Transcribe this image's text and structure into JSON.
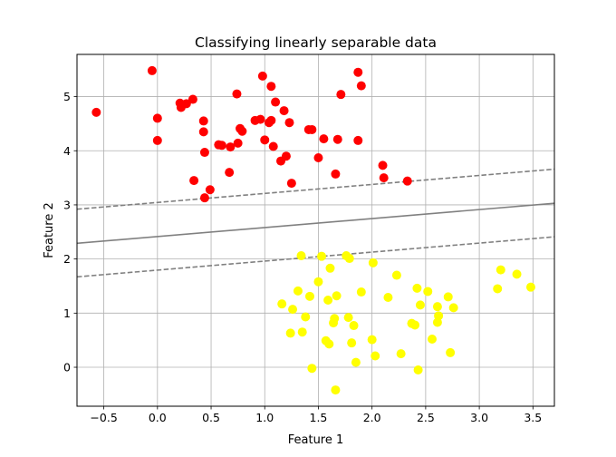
{
  "chart_data": {
    "type": "scatter",
    "title": "Classifying linearly separable data",
    "xlabel": "Feature 1",
    "ylabel": "Feature 2",
    "xlim": [
      -0.75,
      3.7
    ],
    "ylim": [
      -0.72,
      5.78
    ],
    "xticks": [
      -0.5,
      0.0,
      0.5,
      1.0,
      1.5,
      2.0,
      2.5,
      3.0,
      3.5
    ],
    "xtick_labels": [
      "−0.5",
      "0.0",
      "0.5",
      "1.0",
      "1.5",
      "2.0",
      "2.5",
      "3.0",
      "3.5"
    ],
    "yticks": [
      0,
      1,
      2,
      3,
      4,
      5
    ],
    "ytick_labels": [
      "0",
      "1",
      "2",
      "3",
      "4",
      "5"
    ],
    "grid": true,
    "colors": {
      "class_a": "#ff0000",
      "class_b": "#ffff00",
      "boundary": "#808080",
      "grid": "#b0b0b0"
    },
    "lines": [
      {
        "style": "dashed",
        "points": [
          [
            -0.75,
            2.92
          ],
          [
            3.7,
            3.66
          ]
        ]
      },
      {
        "style": "solid",
        "points": [
          [
            -0.75,
            2.29
          ],
          [
            3.7,
            3.03
          ]
        ]
      },
      {
        "style": "dashed",
        "points": [
          [
            -0.75,
            1.67
          ],
          [
            3.7,
            2.41
          ]
        ]
      }
    ],
    "series": [
      {
        "color": "#ff0000",
        "points": [
          [
            -0.57,
            4.71
          ],
          [
            -0.05,
            5.48
          ],
          [
            0.0,
            4.6
          ],
          [
            0.0,
            4.19
          ],
          [
            0.21,
            4.88
          ],
          [
            0.22,
            4.8
          ],
          [
            0.27,
            4.87
          ],
          [
            0.33,
            4.95
          ],
          [
            0.34,
            3.45
          ],
          [
            0.43,
            4.55
          ],
          [
            0.43,
            4.35
          ],
          [
            0.44,
            3.97
          ],
          [
            0.44,
            3.13
          ],
          [
            0.49,
            3.28
          ],
          [
            0.57,
            4.11
          ],
          [
            0.6,
            4.1
          ],
          [
            0.67,
            3.6
          ],
          [
            0.68,
            4.07
          ],
          [
            0.74,
            5.05
          ],
          [
            0.75,
            4.14
          ],
          [
            0.77,
            4.41
          ],
          [
            0.79,
            4.36
          ],
          [
            0.91,
            4.56
          ],
          [
            0.96,
            4.58
          ],
          [
            0.98,
            5.38
          ],
          [
            1.0,
            4.2
          ],
          [
            1.04,
            4.52
          ],
          [
            1.06,
            4.56
          ],
          [
            1.06,
            5.19
          ],
          [
            1.08,
            4.08
          ],
          [
            1.1,
            4.9
          ],
          [
            1.15,
            3.81
          ],
          [
            1.18,
            4.74
          ],
          [
            1.2,
            3.9
          ],
          [
            1.23,
            4.52
          ],
          [
            1.25,
            3.4
          ],
          [
            1.41,
            4.39
          ],
          [
            1.44,
            4.39
          ],
          [
            1.5,
            3.87
          ],
          [
            1.55,
            4.22
          ],
          [
            1.66,
            3.57
          ],
          [
            1.68,
            4.21
          ],
          [
            1.71,
            5.04
          ],
          [
            1.87,
            5.45
          ],
          [
            1.87,
            4.19
          ],
          [
            1.9,
            5.2
          ],
          [
            2.1,
            3.73
          ],
          [
            2.11,
            3.5
          ],
          [
            2.33,
            3.44
          ]
        ]
      },
      {
        "color": "#ffff00",
        "points": [
          [
            1.16,
            1.17
          ],
          [
            1.24,
            0.63
          ],
          [
            1.26,
            1.07
          ],
          [
            1.31,
            1.41
          ],
          [
            1.34,
            2.06
          ],
          [
            1.35,
            0.65
          ],
          [
            1.38,
            0.93
          ],
          [
            1.42,
            1.31
          ],
          [
            1.44,
            -0.02
          ],
          [
            1.5,
            1.58
          ],
          [
            1.53,
            2.05
          ],
          [
            1.57,
            0.49
          ],
          [
            1.59,
            1.24
          ],
          [
            1.6,
            0.43
          ],
          [
            1.61,
            1.83
          ],
          [
            1.64,
            0.82
          ],
          [
            1.65,
            0.9
          ],
          [
            1.66,
            -0.42
          ],
          [
            1.67,
            1.32
          ],
          [
            1.76,
            2.06
          ],
          [
            1.78,
            0.92
          ],
          [
            1.79,
            2.01
          ],
          [
            1.81,
            0.45
          ],
          [
            1.83,
            0.77
          ],
          [
            1.85,
            0.09
          ],
          [
            1.9,
            1.39
          ],
          [
            2.0,
            0.51
          ],
          [
            2.01,
            1.93
          ],
          [
            2.03,
            0.21
          ],
          [
            2.15,
            1.29
          ],
          [
            2.23,
            1.7
          ],
          [
            2.27,
            0.25
          ],
          [
            2.37,
            0.81
          ],
          [
            2.4,
            0.78
          ],
          [
            2.42,
            1.46
          ],
          [
            2.43,
            -0.05
          ],
          [
            2.45,
            1.15
          ],
          [
            2.52,
            1.4
          ],
          [
            2.56,
            0.52
          ],
          [
            2.61,
            0.83
          ],
          [
            2.61,
            1.12
          ],
          [
            2.62,
            0.95
          ],
          [
            2.71,
            1.3
          ],
          [
            2.73,
            0.27
          ],
          [
            2.76,
            1.1
          ],
          [
            3.17,
            1.45
          ],
          [
            3.2,
            1.8
          ],
          [
            3.35,
            1.72
          ],
          [
            3.48,
            1.48
          ]
        ]
      }
    ]
  }
}
